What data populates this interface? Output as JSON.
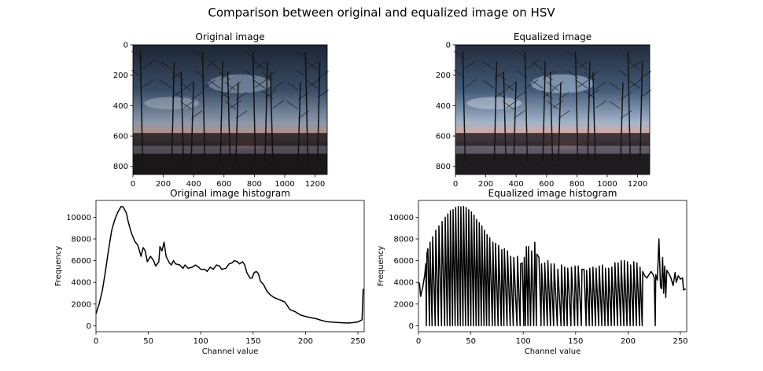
{
  "figure_title": "Comparison between original and equalized image on HSV",
  "images": [
    {
      "title": "Original image",
      "width": 1280,
      "height": 853,
      "xticks": [
        0,
        200,
        400,
        600,
        800,
        1000,
        1200
      ],
      "yticks": [
        0,
        200,
        400,
        600,
        800
      ],
      "brightness": 1.0
    },
    {
      "title": "Equalized image",
      "width": 1280,
      "height": 853,
      "xticks": [
        0,
        200,
        400,
        600,
        800,
        1000,
        1200
      ],
      "yticks": [
        0,
        200,
        400,
        600,
        800
      ],
      "brightness": 1.18
    }
  ],
  "chart_data": [
    {
      "type": "line",
      "title": "Original image histogram",
      "xlabel": "Channel value",
      "ylabel": "Frequency",
      "xlim": [
        0,
        256
      ],
      "ylim": [
        -550,
        11550
      ],
      "xticks": [
        0,
        50,
        100,
        150,
        200,
        250
      ],
      "yticks": [
        0,
        2000,
        4000,
        6000,
        8000,
        10000
      ],
      "grid": false,
      "color": "#000000",
      "points": [
        [
          0,
          1100
        ],
        [
          3,
          2000
        ],
        [
          6,
          3200
        ],
        [
          9,
          5000
        ],
        [
          12,
          7000
        ],
        [
          15,
          8800
        ],
        [
          18,
          9800
        ],
        [
          21,
          10500
        ],
        [
          24,
          11000
        ],
        [
          26,
          10950
        ],
        [
          29,
          10400
        ],
        [
          31,
          9500
        ],
        [
          34,
          8500
        ],
        [
          37,
          7800
        ],
        [
          40,
          7400
        ],
        [
          43,
          6400
        ],
        [
          45,
          7200
        ],
        [
          47,
          6900
        ],
        [
          49,
          5900
        ],
        [
          52,
          6400
        ],
        [
          55,
          6000
        ],
        [
          57,
          5500
        ],
        [
          60,
          5900
        ],
        [
          61,
          7300
        ],
        [
          63,
          6900
        ],
        [
          65,
          7700
        ],
        [
          67,
          6400
        ],
        [
          70,
          5800
        ],
        [
          72,
          5600
        ],
        [
          74,
          6000
        ],
        [
          76,
          5700
        ],
        [
          80,
          5600
        ],
        [
          83,
          5300
        ],
        [
          85,
          5600
        ],
        [
          88,
          5300
        ],
        [
          92,
          5400
        ],
        [
          95,
          5600
        ],
        [
          98,
          5400
        ],
        [
          100,
          5200
        ],
        [
          104,
          5200
        ],
        [
          106,
          5000
        ],
        [
          109,
          5400
        ],
        [
          112,
          5200
        ],
        [
          115,
          5600
        ],
        [
          118,
          5500
        ],
        [
          120,
          5200
        ],
        [
          124,
          5300
        ],
        [
          127,
          5700
        ],
        [
          130,
          5800
        ],
        [
          132,
          6000
        ],
        [
          135,
          5900
        ],
        [
          137,
          5700
        ],
        [
          140,
          5900
        ],
        [
          142,
          5600
        ],
        [
          144,
          4900
        ],
        [
          147,
          4400
        ],
        [
          149,
          4400
        ],
        [
          151,
          4900
        ],
        [
          153,
          5000
        ],
        [
          155,
          4800
        ],
        [
          157,
          4100
        ],
        [
          160,
          3800
        ],
        [
          163,
          3200
        ],
        [
          167,
          2800
        ],
        [
          170,
          2600
        ],
        [
          175,
          2400
        ],
        [
          180,
          2200
        ],
        [
          183,
          1800
        ],
        [
          185,
          1500
        ],
        [
          190,
          1300
        ],
        [
          195,
          1000
        ],
        [
          200,
          850
        ],
        [
          205,
          750
        ],
        [
          210,
          650
        ],
        [
          215,
          500
        ],
        [
          220,
          380
        ],
        [
          230,
          300
        ],
        [
          240,
          250
        ],
        [
          245,
          280
        ],
        [
          250,
          350
        ],
        [
          254,
          550
        ],
        [
          255,
          3400
        ]
      ]
    },
    {
      "type": "line",
      "title": "Equalized image histogram",
      "xlabel": "Channel value",
      "ylabel": "Frequency",
      "xlim": [
        0,
        256
      ],
      "ylim": [
        -550,
        11550
      ],
      "xticks": [
        0,
        50,
        100,
        150,
        200,
        250
      ],
      "yticks": [
        0,
        2000,
        4000,
        6000,
        8000,
        10000
      ],
      "grid": false,
      "color": "#000000",
      "points": [
        [
          0,
          4000
        ],
        [
          1,
          3900
        ],
        [
          2,
          2700
        ],
        [
          4,
          3500
        ],
        [
          6,
          4700
        ],
        [
          7,
          5700
        ],
        [
          7.5,
          0
        ],
        [
          8,
          6600
        ],
        [
          9,
          7100
        ],
        [
          10.5,
          0
        ],
        [
          11,
          7700
        ],
        [
          13,
          0
        ],
        [
          13.5,
          8200
        ],
        [
          16,
          0
        ],
        [
          16.5,
          8800
        ],
        [
          19,
          0
        ],
        [
          19.5,
          9200
        ],
        [
          22,
          0
        ],
        [
          22.5,
          9600
        ],
        [
          25,
          0
        ],
        [
          25.5,
          10000
        ],
        [
          27.5,
          0
        ],
        [
          28,
          10300
        ],
        [
          30,
          0
        ],
        [
          30.5,
          10600
        ],
        [
          32.5,
          0
        ],
        [
          33,
          10700
        ],
        [
          35,
          0
        ],
        [
          35.5,
          10900
        ],
        [
          37.5,
          0
        ],
        [
          38,
          11000
        ],
        [
          40,
          0
        ],
        [
          40.5,
          10950
        ],
        [
          42.5,
          0
        ],
        [
          43,
          11000
        ],
        [
          45,
          0
        ],
        [
          45.5,
          10900
        ],
        [
          47.5,
          0
        ],
        [
          48,
          10700
        ],
        [
          50,
          0
        ],
        [
          50.5,
          10500
        ],
        [
          52.5,
          0
        ],
        [
          53,
          10200
        ],
        [
          55,
          0
        ],
        [
          55.5,
          9800
        ],
        [
          57.5,
          0
        ],
        [
          58,
          9500
        ],
        [
          60,
          0
        ],
        [
          60.5,
          9200
        ],
        [
          62.5,
          0
        ],
        [
          63,
          8800
        ],
        [
          65,
          0
        ],
        [
          65.5,
          8400
        ],
        [
          67.5,
          0
        ],
        [
          68,
          8100
        ],
        [
          70.5,
          0
        ],
        [
          71,
          7700
        ],
        [
          73,
          0
        ],
        [
          73.5,
          7600
        ],
        [
          76,
          0
        ],
        [
          76.5,
          7400
        ],
        [
          79,
          0
        ],
        [
          79.5,
          7000
        ],
        [
          81.5,
          0
        ],
        [
          82,
          7100
        ],
        [
          84.5,
          0
        ],
        [
          85,
          6900
        ],
        [
          87.5,
          0
        ],
        [
          88,
          6400
        ],
        [
          90.5,
          0
        ],
        [
          91,
          6300
        ],
        [
          94,
          0
        ],
        [
          94.5,
          6400
        ],
        [
          97,
          0
        ],
        [
          97.5,
          5700
        ],
        [
          99,
          5800
        ],
        [
          100.5,
          0
        ],
        [
          101,
          6300
        ],
        [
          102,
          0
        ],
        [
          103,
          7300
        ],
        [
          104.5,
          0
        ],
        [
          105,
          7300
        ],
        [
          107,
          0
        ],
        [
          108,
          6900
        ],
        [
          110,
          0
        ],
        [
          111,
          7700
        ],
        [
          112.5,
          0
        ],
        [
          113,
          6600
        ],
        [
          115,
          6300
        ],
        [
          117,
          0
        ],
        [
          117.5,
          5700
        ],
        [
          120,
          0
        ],
        [
          120.5,
          5800
        ],
        [
          123,
          0
        ],
        [
          123.5,
          6000
        ],
        [
          126,
          0
        ],
        [
          126.5,
          5700
        ],
        [
          129,
          0
        ],
        [
          129.5,
          5700
        ],
        [
          132.5,
          0
        ],
        [
          133,
          5200
        ],
        [
          136,
          0
        ],
        [
          136.5,
          5600
        ],
        [
          139,
          0
        ],
        [
          139.5,
          5400
        ],
        [
          142,
          0
        ],
        [
          142.5,
          5300
        ],
        [
          145.5,
          0
        ],
        [
          146,
          5400
        ],
        [
          149,
          0
        ],
        [
          149.5,
          5500
        ],
        [
          152,
          0
        ],
        [
          152.5,
          5500
        ],
        [
          155.5,
          0
        ],
        [
          156,
          5200
        ],
        [
          158,
          5200
        ],
        [
          160,
          0
        ],
        [
          160.5,
          5100
        ],
        [
          163,
          0
        ],
        [
          163.5,
          5300
        ],
        [
          166,
          0
        ],
        [
          166.5,
          5400
        ],
        [
          169,
          0
        ],
        [
          169.5,
          5300
        ],
        [
          172,
          0
        ],
        [
          172.5,
          5500
        ],
        [
          175,
          0
        ],
        [
          175.5,
          5600
        ],
        [
          178,
          0
        ],
        [
          178.5,
          5300
        ],
        [
          181,
          0
        ],
        [
          181.5,
          5300
        ],
        [
          184,
          0
        ],
        [
          184.5,
          5400
        ],
        [
          187,
          0
        ],
        [
          187.5,
          5800
        ],
        [
          190,
          0
        ],
        [
          190.5,
          5800
        ],
        [
          193,
          0
        ],
        [
          193.5,
          6000
        ],
        [
          196,
          0
        ],
        [
          196.5,
          6000
        ],
        [
          199,
          0
        ],
        [
          199.5,
          5900
        ],
        [
          202,
          0
        ],
        [
          202.5,
          5600
        ],
        [
          205,
          0
        ],
        [
          205.5,
          5900
        ],
        [
          208,
          0
        ],
        [
          208.5,
          5800
        ],
        [
          211,
          0
        ],
        [
          211.5,
          5400
        ],
        [
          213.5,
          0
        ],
        [
          214,
          5000
        ],
        [
          216,
          4600
        ],
        [
          218,
          4400
        ],
        [
          220,
          4700
        ],
        [
          222,
          5000
        ],
        [
          224,
          4700
        ],
        [
          225,
          4400
        ],
        [
          226,
          0
        ],
        [
          226.5,
          4700
        ],
        [
          228,
          4200
        ],
        [
          229.5,
          8000
        ],
        [
          231,
          3600
        ],
        [
          232,
          3400
        ],
        [
          233,
          6300
        ],
        [
          234,
          3000
        ],
        [
          235,
          5500
        ],
        [
          236,
          2600
        ],
        [
          237,
          5100
        ],
        [
          239,
          4800
        ],
        [
          241,
          4400
        ],
        [
          243,
          3700
        ],
        [
          245,
          4900
        ],
        [
          246,
          4000
        ],
        [
          248,
          4600
        ],
        [
          250,
          4300
        ],
        [
          252,
          4400
        ],
        [
          253,
          3300
        ],
        [
          255,
          3400
        ]
      ]
    }
  ]
}
